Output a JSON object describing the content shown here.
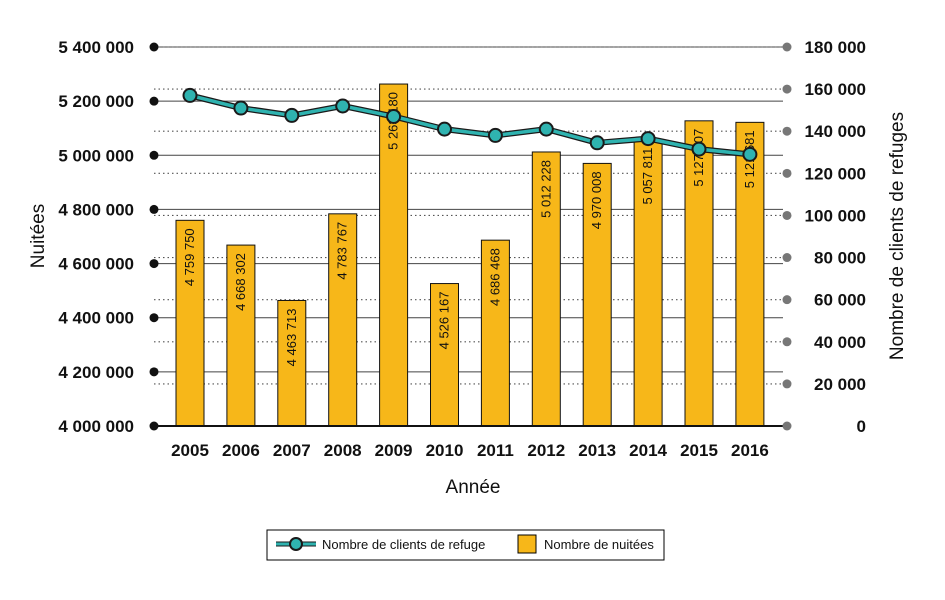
{
  "chart_data": {
    "type": "bar+line",
    "categories": [
      "2005",
      "2006",
      "2007",
      "2008",
      "2009",
      "2010",
      "2011",
      "2012",
      "2013",
      "2014",
      "2015",
      "2016"
    ],
    "bars": {
      "name": "Nombre de nuitées",
      "axis": "left",
      "values": [
        4759750,
        4668302,
        4463713,
        4783767,
        5263180,
        4526167,
        4686468,
        5012228,
        4970008,
        5057811,
        5127307,
        5121681
      ],
      "labels": [
        "4 759 750",
        "4 668 302",
        "4 463 713",
        "4 783 767",
        "5 263 180",
        "4 526 167",
        "4 686 468",
        "5 012 228",
        "4 970 008",
        "5 057 811",
        "5 127 307",
        "5 121 681"
      ],
      "color": "#F7B719"
    },
    "line": {
      "name": "Nombre de clients de refuge",
      "axis": "right",
      "values": [
        157000,
        151000,
        147500,
        152000,
        147000,
        141000,
        138000,
        141000,
        134500,
        136500,
        131500,
        129000
      ],
      "color": "#2FB3B0"
    },
    "left_axis": {
      "title": "Nuitées",
      "min": 4000000,
      "max": 5400000,
      "ticks": [
        4000000,
        4200000,
        4400000,
        4600000,
        4800000,
        5000000,
        5200000,
        5400000
      ],
      "tick_labels": [
        "4 000 000",
        "4 200 000",
        "4 400 000",
        "4 600 000",
        "4 800 000",
        "5 000 000",
        "5 200 000",
        "5 400 000"
      ]
    },
    "right_axis": {
      "title": "Nombre de clients de refuges",
      "min": 0,
      "max": 180000,
      "ticks": [
        0,
        20000,
        40000,
        60000,
        80000,
        100000,
        120000,
        140000,
        160000,
        180000
      ],
      "tick_labels": [
        "0",
        "20 000",
        "40 000",
        "60 000",
        "80 000",
        "100 000",
        "120 000",
        "140 000",
        "160 000",
        "180 000"
      ]
    },
    "xlabel": "Année",
    "legend": {
      "position": "bottom-center",
      "line_label": "Nombre de clients de refuge",
      "bar_label": "Nombre de nuitées"
    }
  }
}
